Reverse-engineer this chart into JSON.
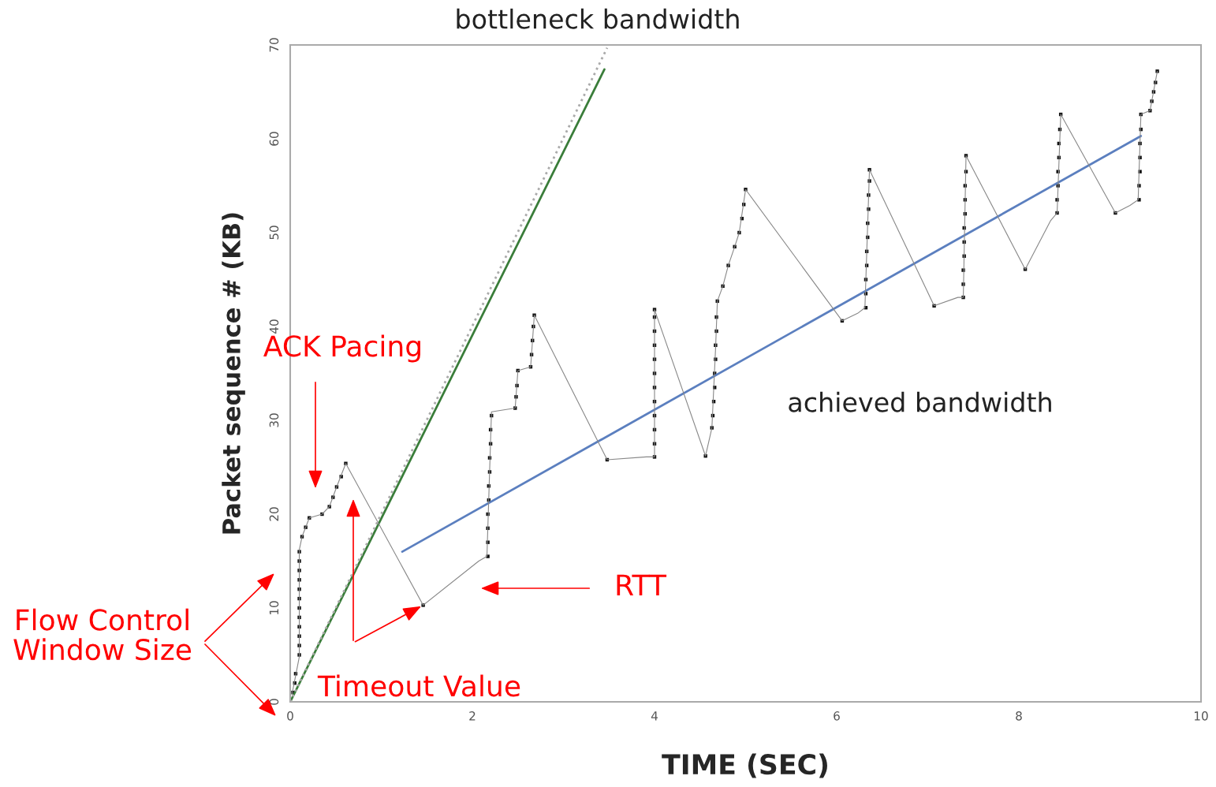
{
  "chart_data": {
    "type": "scatter",
    "xlabel": "TIME (SEC)",
    "ylabel": "Packet sequence # (KB)",
    "xlim": [
      0,
      10
    ],
    "ylim": [
      0,
      70
    ],
    "xticks": [
      0,
      2,
      4,
      6,
      8,
      10
    ],
    "yticks": [
      0,
      10,
      20,
      30,
      40,
      50,
      60,
      70
    ],
    "grid": false,
    "legend": false,
    "series": [
      {
        "type": "line",
        "color": "#3a7d3a",
        "x": [
          0,
          3.45
        ],
        "values": [
          0,
          67.4
        ]
      },
      {
        "type": "line",
        "color": "#aaaaaa",
        "line_style": "dotted",
        "x": [
          0,
          3.48
        ],
        "values": [
          0,
          69.7
        ]
      },
      {
        "type": "line",
        "color": "#5b7fbf",
        "x": [
          1.23,
          9.34
        ],
        "values": [
          16.0,
          60.3
        ]
      },
      {
        "type": "line",
        "color": "#888888",
        "x": [
          0.02,
          0.1,
          0.1,
          0.13,
          0.21,
          0.35,
          0.43,
          0.51,
          0.61,
          1.46,
          2.07,
          2.16,
          2.21,
          2.47,
          2.5,
          2.64,
          2.68,
          3.48,
          3.91,
          4.0,
          4.0,
          4.56,
          4.63,
          4.67,
          4.69,
          4.75,
          4.81,
          4.88,
          4.93,
          5.0,
          6.06,
          6.23,
          6.31,
          6.36,
          7.07,
          7.33,
          7.39,
          7.42,
          8.07,
          8.35,
          8.42,
          8.46,
          9.06,
          9.22,
          9.31,
          9.34,
          9.44,
          9.52
        ],
        "values": [
          0.8,
          4.8,
          16.2,
          17.6,
          19.6,
          20.0,
          20.8,
          22.9,
          25.4,
          10.3,
          15.0,
          15.5,
          30.9,
          31.3,
          35.3,
          35.7,
          41.2,
          25.8,
          26.1,
          26.1,
          41.8,
          26.2,
          29.2,
          37.6,
          42.7,
          44.3,
          46.5,
          48.5,
          50.0,
          54.6,
          40.6,
          41.4,
          42.0,
          56.7,
          42.2,
          43.1,
          43.1,
          58.2,
          46.1,
          51.3,
          52.1,
          62.6,
          52.1,
          52.9,
          53.5,
          62.6,
          63.0,
          67.2
        ]
      },
      {
        "color": "#111111",
        "marker": "square",
        "x": [
          0.03,
          0.05,
          0.06,
          0.1,
          0.1,
          0.1,
          0.1,
          0.1,
          0.1,
          0.1,
          0.1,
          0.1,
          0.1,
          0.1,
          0.1,
          0.13,
          0.17,
          0.21,
          0.35,
          0.43,
          0.47,
          0.51,
          0.56,
          0.61,
          1.46,
          2.17,
          2.17,
          2.17,
          2.17,
          2.18,
          2.18,
          2.19,
          2.19,
          2.2,
          2.2,
          2.21,
          2.47,
          2.48,
          2.49,
          2.5,
          2.64,
          2.65,
          2.66,
          2.67,
          2.68,
          3.48,
          4.0,
          4.0,
          4.0,
          4.0,
          4.0,
          4.0,
          4.0,
          4.0,
          4.0,
          4.0,
          4.0,
          4.0,
          4.56,
          4.63,
          4.64,
          4.65,
          4.66,
          4.66,
          4.67,
          4.67,
          4.68,
          4.68,
          4.69,
          4.75,
          4.81,
          4.88,
          4.93,
          4.96,
          4.98,
          5.0,
          6.06,
          6.32,
          6.32,
          6.32,
          6.33,
          6.33,
          6.34,
          6.34,
          6.35,
          6.35,
          6.36,
          6.36,
          7.07,
          7.39,
          7.39,
          7.39,
          7.4,
          7.4,
          7.4,
          7.41,
          7.41,
          7.41,
          7.42,
          7.42,
          8.07,
          8.42,
          8.42,
          8.43,
          8.43,
          8.44,
          8.44,
          8.45,
          8.46,
          9.06,
          9.32,
          9.32,
          9.33,
          9.33,
          9.33,
          9.34,
          9.34,
          9.44,
          9.46,
          9.48,
          9.5,
          9.52
        ],
        "values": [
          1,
          2,
          3,
          5,
          6,
          7,
          8,
          9,
          10,
          11,
          12,
          13,
          14,
          15,
          16,
          17.6,
          18.6,
          19.6,
          20.0,
          20.8,
          21.8,
          22.9,
          24.0,
          25.4,
          10.3,
          15.5,
          17,
          18.5,
          20,
          21.5,
          23,
          24.5,
          26,
          27.5,
          29,
          30.5,
          31.3,
          32.5,
          33.7,
          35.3,
          35.7,
          37,
          38.5,
          40,
          41.2,
          25.8,
          26.1,
          27.5,
          29,
          30.5,
          32,
          33.5,
          35,
          36.5,
          38,
          39.5,
          41,
          41.8,
          26.2,
          29.2,
          30.5,
          32,
          33.5,
          35,
          36.5,
          38,
          39.5,
          41,
          42.7,
          44.3,
          46.5,
          48.5,
          50.0,
          51.5,
          53,
          54.6,
          40.6,
          42,
          43.5,
          45,
          46.5,
          48,
          49.5,
          51,
          52.5,
          54,
          55.5,
          56.7,
          42.2,
          43.1,
          44.5,
          46,
          47.5,
          49,
          50.5,
          52,
          53.5,
          55,
          56.5,
          58.2,
          46.1,
          52.1,
          53.5,
          55,
          56.5,
          58,
          59.5,
          61,
          62.6,
          52.1,
          53.5,
          55,
          56.5,
          58,
          59.5,
          61,
          62.6,
          63,
          64,
          65,
          66,
          67.2
        ]
      }
    ],
    "annotations": [
      "bottleneck bandwidth",
      "achieved bandwidth",
      "ACK Pacing",
      "RTT",
      {
        "text": "Timeout Value",
        "x": 1.46,
        "y": 10.3
      },
      "Flow Control\nWindow Size"
    ]
  }
}
